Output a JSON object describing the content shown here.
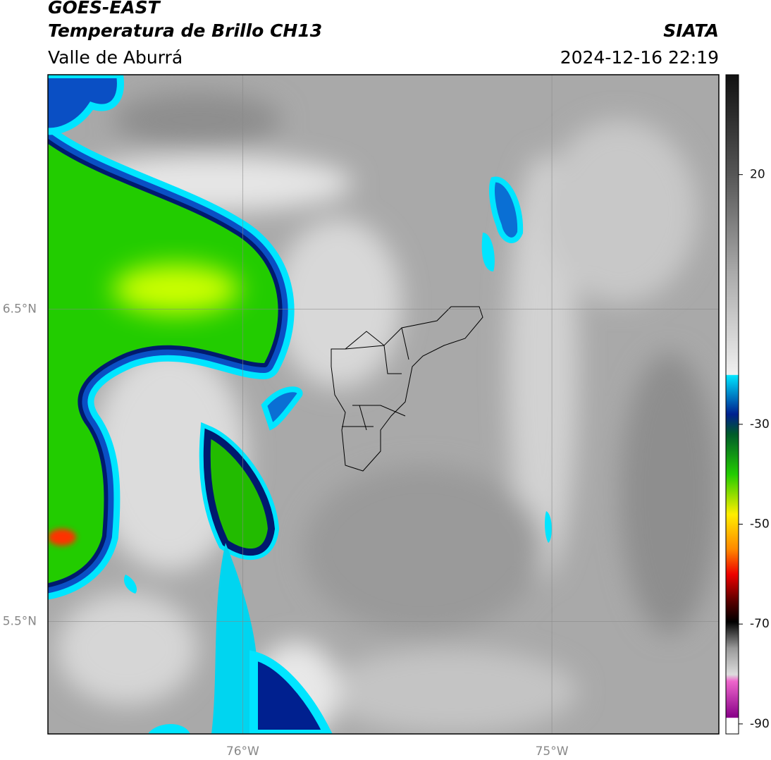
{
  "header": {
    "title": "GOES-EAST",
    "subtitle": "Temperatura de Brillo CH13",
    "region": "Valle de Aburrá",
    "source": "SIATA",
    "timestamp": "2024-12-16 22:19"
  },
  "map": {
    "lonlim": [
      -76.63,
      -74.46
    ],
    "latlim": [
      5.14,
      7.25
    ],
    "lat_ticks": [
      {
        "value": 6.5,
        "label": "6.5°N"
      },
      {
        "value": 5.5,
        "label": "5.5°N"
      }
    ],
    "lon_ticks": [
      {
        "value": -76,
        "label": "76°W"
      },
      {
        "value": -75,
        "label": "75°W"
      }
    ],
    "grid": true
  },
  "colorbar": {
    "lim": [
      -92,
      40
    ],
    "ticks": [
      20,
      -30,
      -50,
      -70,
      -90
    ]
  }
}
